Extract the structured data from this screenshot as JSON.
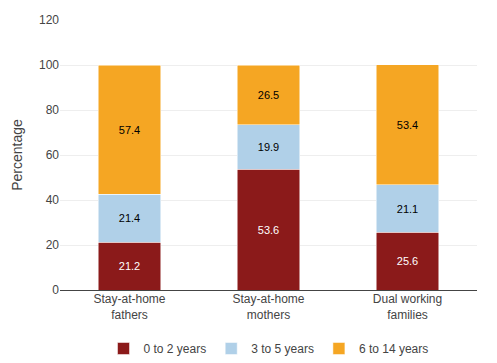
{
  "chart_data": {
    "type": "bar",
    "stacked": true,
    "categories": [
      "Stay-at-home\nfathers",
      "Stay-at-home\nmothers",
      "Dual working\nfamilies"
    ],
    "series": [
      {
        "name": "0 to 2 years",
        "color": "#8B1A1A",
        "values": [
          21.2,
          53.6,
          25.6
        ]
      },
      {
        "name": "3 to 5 years",
        "color": "#B0D0E8",
        "values": [
          21.4,
          19.9,
          21.1
        ]
      },
      {
        "name": "6 to 14 years",
        "color": "#F5A623",
        "values": [
          57.4,
          26.5,
          53.4
        ]
      }
    ],
    "ylabel": "Percentage",
    "ylim": [
      0,
      120
    ],
    "yticks": [
      0,
      20,
      40,
      60,
      80,
      100,
      120
    ],
    "grid": true,
    "data_labels": true,
    "legend": "bottom"
  }
}
